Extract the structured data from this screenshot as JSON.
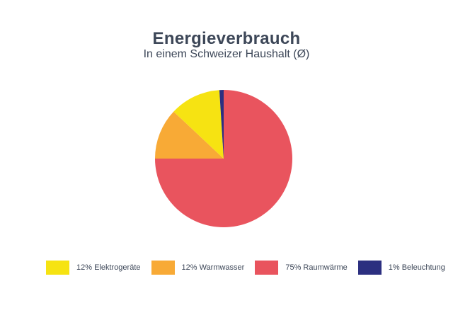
{
  "page": {
    "background_color": "#ffffff",
    "text_color": "#3d4758"
  },
  "chart_data": {
    "type": "pie",
    "title": "Energieverbrauch",
    "subtitle": "In einem Schweizer Haushalt (Ø)",
    "unit": "%",
    "total": 100,
    "start_angle_deg": 0,
    "direction": "clockwise",
    "legend_position": "bottom",
    "slices": [
      {
        "id": "raumwaerme",
        "name": "Raumwärme",
        "value": 75,
        "label": "75% Raumwärme",
        "color": "#E9545E"
      },
      {
        "id": "warmwasser",
        "name": "Warmwasser",
        "value": 12,
        "label": "12% Warmwasser",
        "color": "#F8AA36"
      },
      {
        "id": "elektrogeraete",
        "name": "Elektrogeräte",
        "value": 12,
        "label": "12% Elektrogeräte",
        "color": "#F6E312"
      },
      {
        "id": "beleuchtung",
        "name": "Beleuchtung",
        "value": 1,
        "label": "1% Beleuchtung",
        "color": "#2C2F80"
      }
    ],
    "legend_order": [
      2,
      1,
      0,
      3
    ]
  }
}
